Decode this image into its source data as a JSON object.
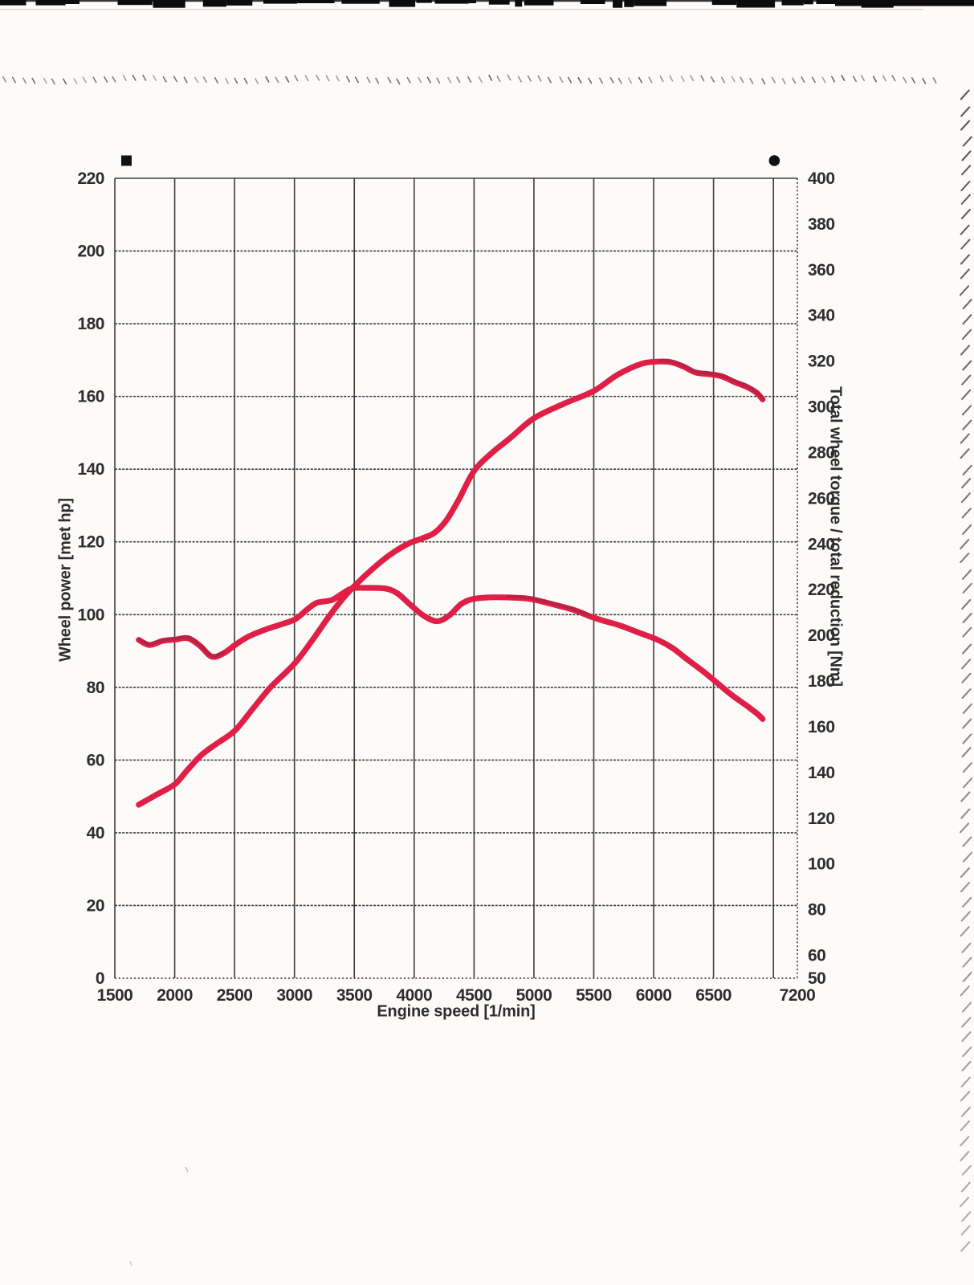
{
  "page": {
    "background_color": "#fcfbf9",
    "description": "Scanned dyno test printout page"
  },
  "chart_data": {
    "type": "line",
    "title": "",
    "xlabel": "Engine speed [1/min]",
    "ylabel_left": "Wheel power [met hp]",
    "ylabel_right": "Total wheel torque / total reduction [Nm]",
    "x_range": [
      1500,
      7200
    ],
    "x_gridlines_rpm": [
      1500,
      2000,
      2500,
      3000,
      3500,
      4000,
      4500,
      5000,
      5500,
      6000,
      6500,
      7000
    ],
    "x_tick_labels": [
      {
        "rpm": 1500,
        "label": "1500"
      },
      {
        "rpm": 2000,
        "label": "2000"
      },
      {
        "rpm": 2500,
        "label": "2500"
      },
      {
        "rpm": 3000,
        "label": "3000"
      },
      {
        "rpm": 3500,
        "label": "3500"
      },
      {
        "rpm": 4000,
        "label": "4000"
      },
      {
        "rpm": 4500,
        "label": "4500"
      },
      {
        "rpm": 5000,
        "label": "5000"
      },
      {
        "rpm": 5500,
        "label": "5500"
      },
      {
        "rpm": 6000,
        "label": "6000"
      },
      {
        "rpm": 6500,
        "label": "6500"
      },
      {
        "rpm": 7200,
        "label": "7200"
      }
    ],
    "y_left_range": [
      0,
      220
    ],
    "y_left_ticks": [
      220,
      200,
      180,
      160,
      140,
      120,
      100,
      80,
      60,
      40,
      20,
      0
    ],
    "y_right_range": [
      50,
      400
    ],
    "y_right_ticks": [
      400,
      380,
      360,
      340,
      320,
      300,
      280,
      260,
      240,
      220,
      200,
      180,
      160,
      140,
      120,
      100,
      80,
      60,
      50
    ],
    "grid": true,
    "legend_position": "above-plot",
    "legend_markers": [
      {
        "symbol": "black-square",
        "series": "Wheel power"
      },
      {
        "symbol": "black-circle",
        "series": "Total wheel torque"
      }
    ],
    "line_color": "#e01f46",
    "line_color_dark": "#8e2840",
    "grid_color": "#3c3c3c",
    "series": [
      {
        "name": "Wheel power",
        "axis": "left",
        "unit": "met hp",
        "peak": {
          "rpm": 6050,
          "value": 169.6
        },
        "dark_segments": [
          [
            5950,
            6910
          ]
        ],
        "points": [
          [
            1700,
            47.7
          ],
          [
            1850,
            50.5
          ],
          [
            2000,
            53.3
          ],
          [
            2100,
            57.0
          ],
          [
            2220,
            61.3
          ],
          [
            2350,
            64.5
          ],
          [
            2500,
            68.0
          ],
          [
            2650,
            74.0
          ],
          [
            2800,
            80.0
          ],
          [
            3000,
            86.5
          ],
          [
            3150,
            93.0
          ],
          [
            3300,
            100.0
          ],
          [
            3420,
            105.0
          ],
          [
            3520,
            108.5
          ],
          [
            3650,
            112.5
          ],
          [
            3800,
            116.5
          ],
          [
            3950,
            119.5
          ],
          [
            4070,
            121.0
          ],
          [
            4170,
            122.5
          ],
          [
            4270,
            126.0
          ],
          [
            4370,
            131.5
          ],
          [
            4500,
            139.5
          ],
          [
            4650,
            144.5
          ],
          [
            4800,
            148.5
          ],
          [
            5000,
            154.0
          ],
          [
            5250,
            158.0
          ],
          [
            5500,
            161.5
          ],
          [
            5700,
            166.0
          ],
          [
            5900,
            169.0
          ],
          [
            6050,
            169.6
          ],
          [
            6150,
            169.4
          ],
          [
            6250,
            168.2
          ],
          [
            6350,
            166.6
          ],
          [
            6470,
            166.1
          ],
          [
            6570,
            165.5
          ],
          [
            6680,
            163.9
          ],
          [
            6780,
            162.6
          ],
          [
            6860,
            161.0
          ],
          [
            6910,
            159.2
          ]
        ]
      },
      {
        "name": "Total wheel torque",
        "axis": "right",
        "unit": "Nm",
        "peak": {
          "rpm": 3600,
          "value": 220.8
        },
        "dark_segments": [
          [
            1700,
            2450
          ],
          [
            4650,
            5500
          ]
        ],
        "points": [
          [
            1700,
            198.0
          ],
          [
            1790,
            195.8
          ],
          [
            1900,
            197.6
          ],
          [
            2010,
            198.2
          ],
          [
            2110,
            198.8
          ],
          [
            2210,
            195.5
          ],
          [
            2310,
            190.7
          ],
          [
            2410,
            192.2
          ],
          [
            2510,
            196.0
          ],
          [
            2620,
            199.6
          ],
          [
            2760,
            202.6
          ],
          [
            2900,
            205.0
          ],
          [
            3010,
            207.2
          ],
          [
            3110,
            211.5
          ],
          [
            3190,
            214.3
          ],
          [
            3310,
            215.4
          ],
          [
            3400,
            218.3
          ],
          [
            3480,
            220.5
          ],
          [
            3600,
            220.8
          ],
          [
            3760,
            220.5
          ],
          [
            3860,
            218.4
          ],
          [
            3960,
            213.8
          ],
          [
            4080,
            208.6
          ],
          [
            4190,
            206.2
          ],
          [
            4290,
            208.6
          ],
          [
            4390,
            213.6
          ],
          [
            4480,
            215.8
          ],
          [
            4620,
            216.6
          ],
          [
            4780,
            216.6
          ],
          [
            4930,
            216.2
          ],
          [
            5030,
            215.3
          ],
          [
            5180,
            213.3
          ],
          [
            5330,
            211.2
          ],
          [
            5470,
            208.3
          ],
          [
            5570,
            206.6
          ],
          [
            5720,
            204.3
          ],
          [
            5870,
            201.3
          ],
          [
            6040,
            197.9
          ],
          [
            6160,
            194.4
          ],
          [
            6270,
            189.9
          ],
          [
            6410,
            184.4
          ],
          [
            6530,
            179.2
          ],
          [
            6650,
            174.0
          ],
          [
            6770,
            169.5
          ],
          [
            6870,
            165.5
          ],
          [
            6910,
            163.4
          ]
        ]
      }
    ]
  }
}
